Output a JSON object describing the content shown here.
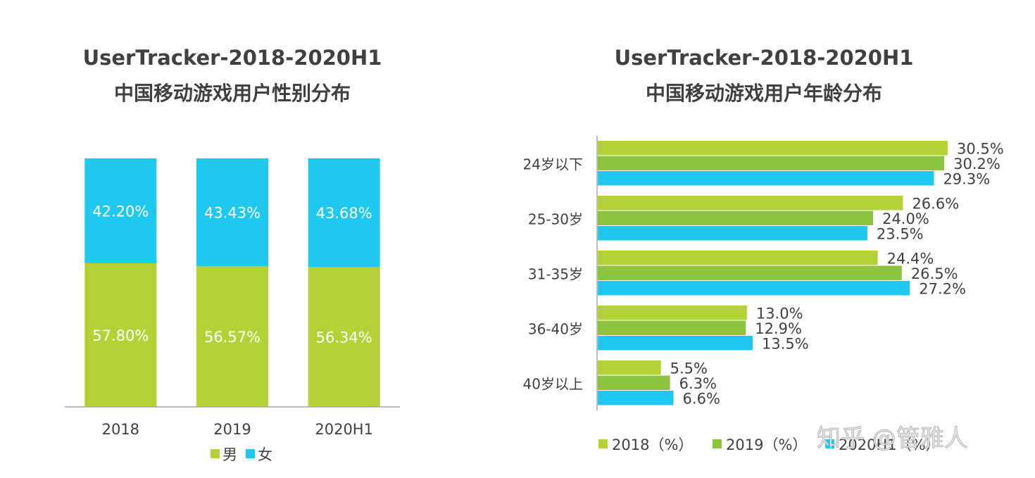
{
  "chart_data": [
    {
      "type": "bar",
      "stacked": true,
      "percent": true,
      "title": "UserTracker-2018-2020H1",
      "subtitle": "中国移动游戏用户性别分布",
      "categories": [
        "2018",
        "2019",
        "2020H1"
      ],
      "series": [
        {
          "name": "男",
          "color": "#b2d235",
          "values": [
            57.8,
            56.57,
            56.34
          ],
          "labels": [
            "57.80%",
            "56.57%",
            "56.34%"
          ]
        },
        {
          "name": "女",
          "color": "#1ec8ee",
          "values": [
            42.2,
            43.43,
            43.68
          ],
          "labels": [
            "42.20%",
            "43.43%",
            "43.68%"
          ]
        }
      ],
      "ylim": [
        0,
        100
      ],
      "legend": "bottom",
      "grid": false
    },
    {
      "type": "bar",
      "orientation": "horizontal",
      "title": "UserTracker-2018-2020H1",
      "subtitle": "中国移动游戏用户年龄分布",
      "categories": [
        "24岁以下",
        "25-30岁",
        "31-35岁",
        "36-40岁",
        "40岁以上"
      ],
      "series": [
        {
          "name": "2018（%）",
          "color": "#b2d235",
          "values": [
            30.5,
            26.6,
            24.4,
            13.0,
            5.5
          ],
          "labels": [
            "30.5%",
            "26.6%",
            "24.4%",
            "13.0%",
            "5.5%"
          ]
        },
        {
          "name": "2019（%）",
          "color": "#8cc43e",
          "values": [
            30.2,
            24.0,
            26.5,
            12.9,
            6.3
          ],
          "labels": [
            "30.2%",
            "24.0%",
            "26.5%",
            "12.9%",
            "6.3%"
          ]
        },
        {
          "name": "2020H1（%）",
          "color": "#1ec8ee",
          "values": [
            29.3,
            23.5,
            27.2,
            13.5,
            6.6
          ],
          "labels": [
            "29.3%",
            "23.5%",
            "27.2%",
            "13.5%",
            "6.6%"
          ]
        }
      ],
      "xlim": [
        0,
        31
      ],
      "legend": "bottom",
      "grid": false
    }
  ],
  "watermark": "知乎 @管雅人"
}
